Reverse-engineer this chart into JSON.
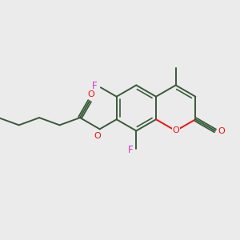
{
  "background_color": "#ebebeb",
  "bond_color": "#3a5a3a",
  "oxygen_color": "#ee1111",
  "fluorine_color": "#cc33cc",
  "fig_width": 3.0,
  "fig_height": 3.0,
  "dpi": 100,
  "xlim": [
    0,
    10.0
  ],
  "ylim": [
    0,
    10.0
  ]
}
